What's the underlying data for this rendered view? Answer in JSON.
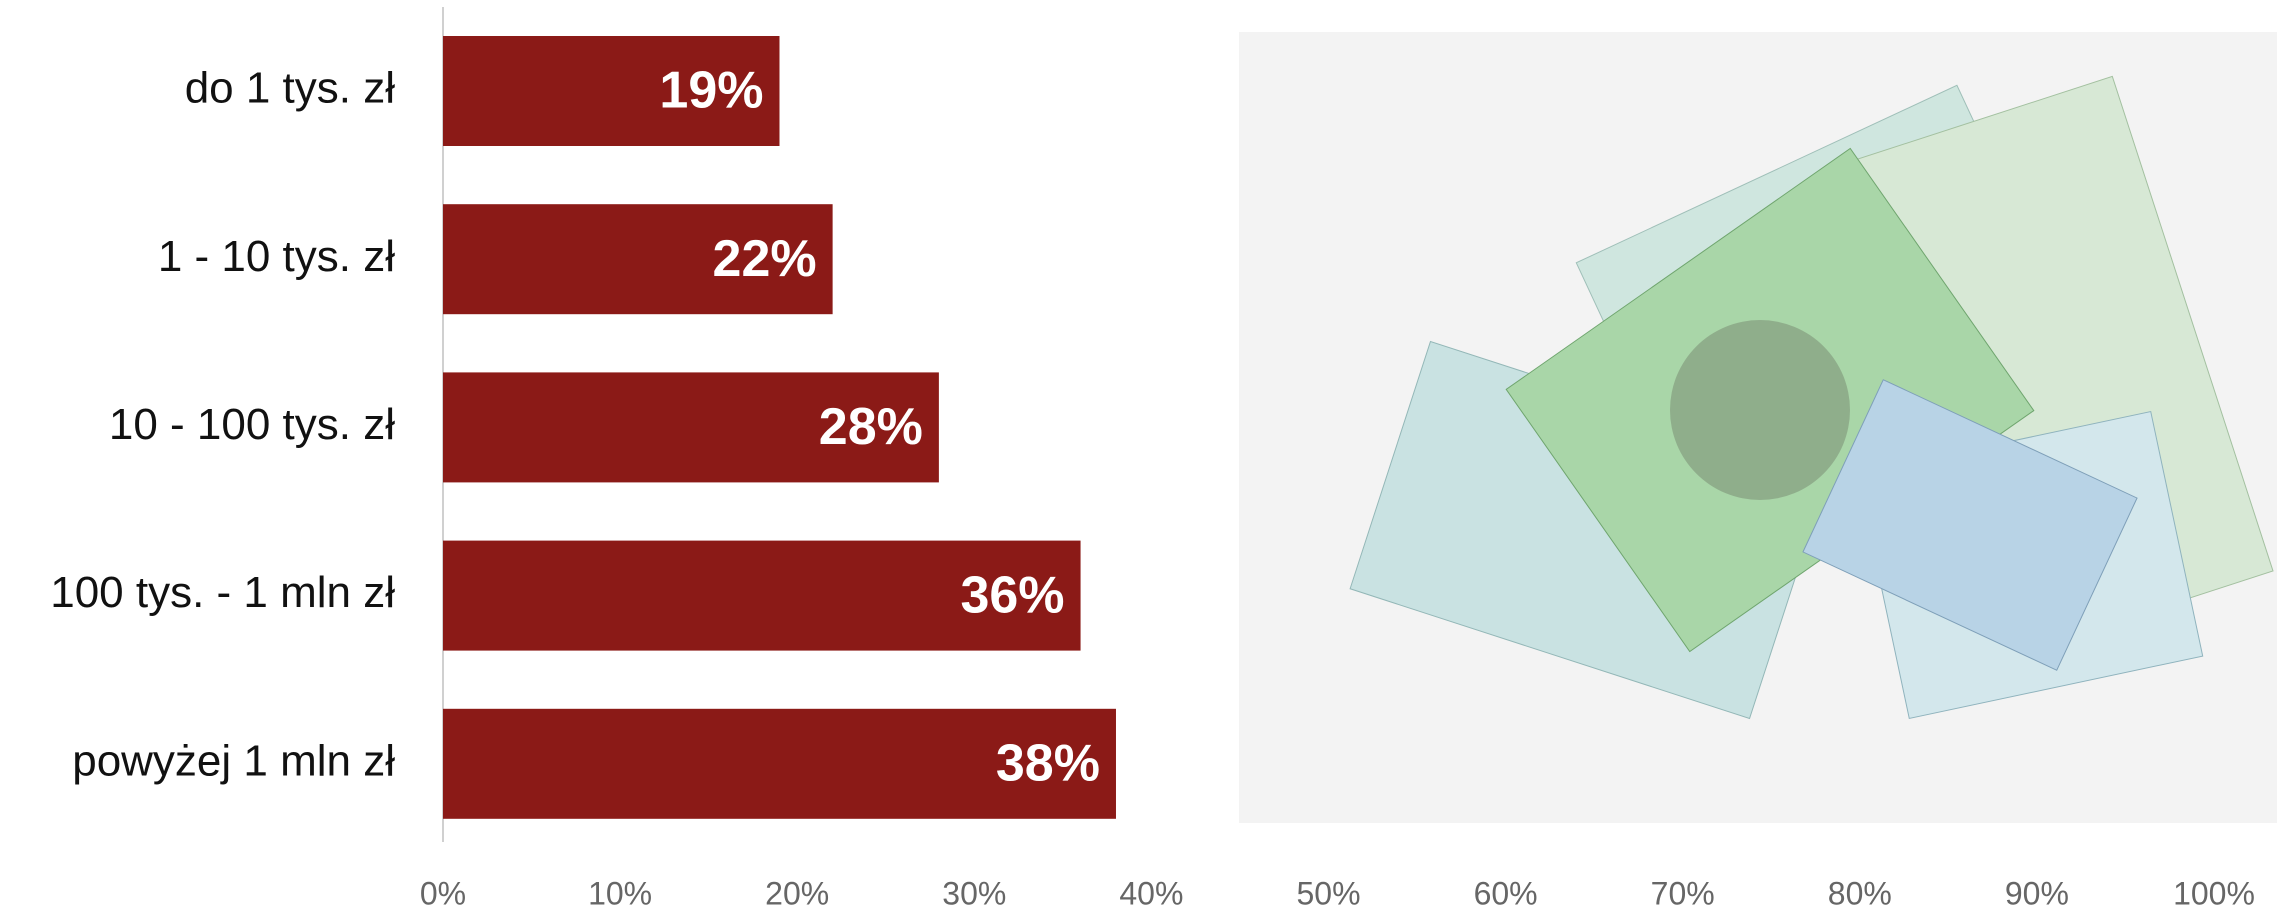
{
  "chart_data": {
    "type": "bar",
    "orientation": "horizontal",
    "categories": [
      "do 1 tys. zł",
      "1 - 10 tys. zł",
      "10 - 100 tys. zł",
      "100 tys. - 1 mln zł",
      "powyżej 1 mln zł"
    ],
    "values": [
      19,
      22,
      28,
      36,
      38
    ],
    "value_labels": [
      "19%",
      "22%",
      "28%",
      "36%",
      "38%"
    ],
    "color": "#8b1a17",
    "xlim": [
      0,
      100
    ],
    "xticks": [
      {
        "value": 0,
        "label": "0%"
      },
      {
        "value": 10,
        "label": "10%"
      },
      {
        "value": 20,
        "label": "20%"
      },
      {
        "value": 30,
        "label": "30%"
      },
      {
        "value": 40,
        "label": "40%"
      },
      {
        "value": 50,
        "label": "50%"
      },
      {
        "value": 60,
        "label": "60%"
      },
      {
        "value": 70,
        "label": "70%"
      },
      {
        "value": 80,
        "label": "80%"
      },
      {
        "value": 90,
        "label": "90%"
      },
      {
        "value": 100,
        "label": "100%"
      }
    ],
    "grid": false
  }
}
